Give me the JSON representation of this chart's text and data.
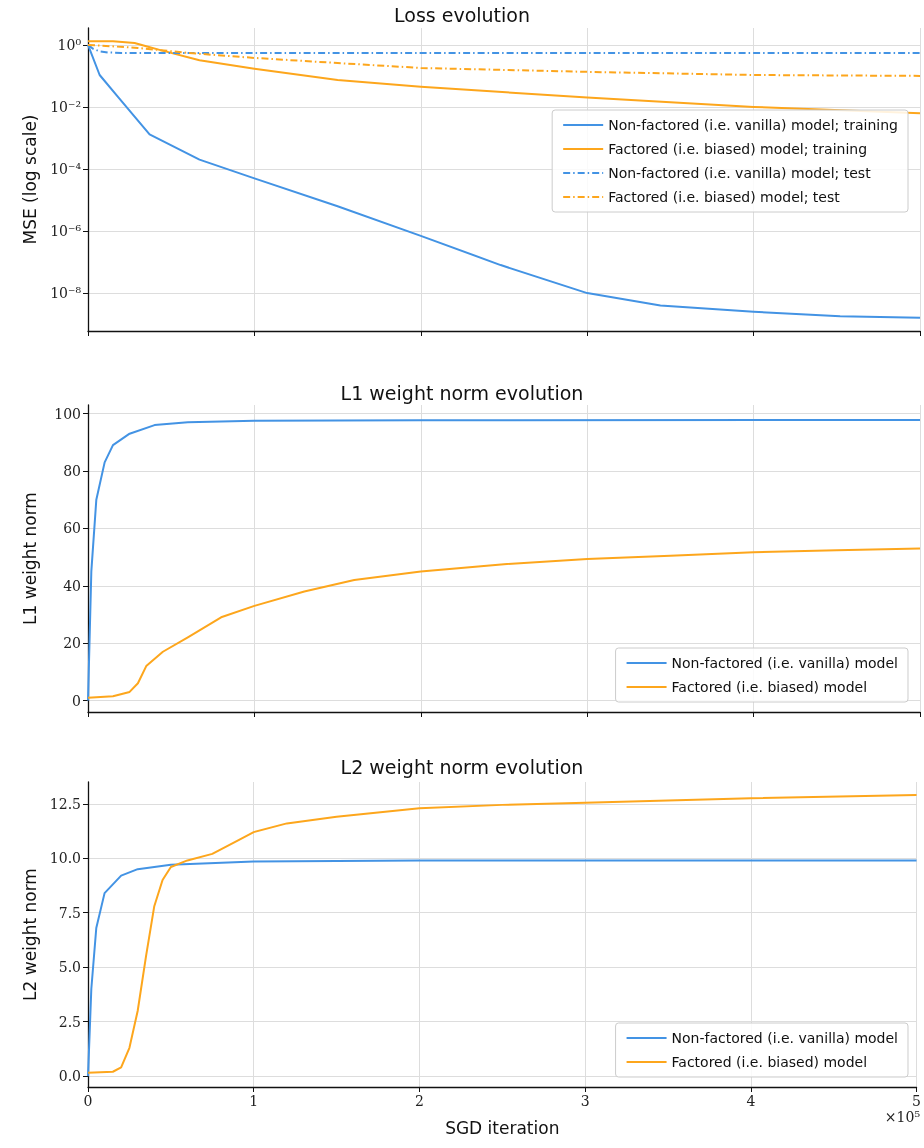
{
  "chart_data": [
    {
      "type": "line",
      "title": "Loss evolution",
      "ylabel": "MSE (log scale)",
      "log": "y",
      "grid": true,
      "legend": "right",
      "marker": "none",
      "tick_labels": "y",
      "xlim": [
        0,
        5
      ],
      "xticks": [
        0,
        1,
        2,
        3,
        4,
        5
      ],
      "ylim": [
        6e-10,
        3.5
      ],
      "yticks": [
        {
          "value": 1,
          "label": "10⁰"
        },
        {
          "value": 0.01,
          "label": "10⁻²"
        },
        {
          "value": 0.0001,
          "label": "10⁻⁴"
        },
        {
          "value": 1e-06,
          "label": "10⁻⁶"
        },
        {
          "value": 1e-08,
          "label": "10⁻⁸"
        }
      ],
      "series": [
        {
          "name": "Non-factored (i.e. vanilla) model; training",
          "color": "#4393e4",
          "line_style": "solid",
          "x": [
            0,
            0.07,
            0.18,
            0.37,
            0.67,
            1,
            1.5,
            2,
            2.48,
            3,
            3.44,
            4,
            4.52,
            5
          ],
          "values": [
            1,
            0.107,
            0.021,
            0.0013,
            0.0002,
            5e-05,
            6.3e-06,
            7e-07,
            8e-08,
            1e-08,
            4e-09,
            2.5e-09,
            1.8e-09,
            1.6e-09
          ]
        },
        {
          "name": "Factored (i.e. biased) model; training",
          "color": "#fda61c",
          "line_style": "solid",
          "x": [
            0,
            0.15,
            0.28,
            0.35,
            0.43,
            0.67,
            1,
            1.5,
            2,
            3,
            4,
            5
          ],
          "values": [
            1.3,
            1.3,
            1.15,
            0.9,
            0.69,
            0.32,
            0.17,
            0.074,
            0.045,
            0.02,
            0.01,
            0.0063
          ]
        },
        {
          "name": "Non-factored (i.e. vanilla) model; test",
          "color": "#4393e4",
          "line_style": "dashdot",
          "x": [
            0,
            0.03,
            0.07,
            0.12,
            0.2,
            1,
            3,
            5
          ],
          "values": [
            1,
            0.75,
            0.62,
            0.57,
            0.55,
            0.55,
            0.55,
            0.55
          ]
        },
        {
          "name": "Factored (i.e. biased) model; test",
          "color": "#fda61c",
          "line_style": "dashdot",
          "x": [
            0,
            0.3,
            0.6,
            1,
            1.5,
            2,
            3,
            4,
            5
          ],
          "values": [
            1,
            0.8,
            0.55,
            0.38,
            0.26,
            0.18,
            0.135,
            0.107,
            0.1
          ]
        }
      ]
    },
    {
      "type": "line",
      "title": "L1 weight norm evolution",
      "ylabel": "L1 weight norm",
      "grid": true,
      "legend": "bottom right",
      "marker": "none",
      "tick_labels": "y",
      "xlim": [
        0,
        5
      ],
      "xticks": [
        0,
        1,
        2,
        3,
        4,
        5
      ],
      "ylim": [
        -4,
        103
      ],
      "yticks": [
        0,
        20,
        40,
        60,
        80,
        100
      ],
      "series": [
        {
          "name": "Non-factored (i.e. vanilla) model",
          "color": "#4393e4",
          "line_style": "solid",
          "x": [
            0,
            0.02,
            0.05,
            0.1,
            0.15,
            0.25,
            0.4,
            0.6,
            1,
            2,
            5
          ],
          "values": [
            0,
            45,
            70,
            83,
            89,
            93,
            96,
            97,
            97.5,
            97.7,
            97.8
          ]
        },
        {
          "name": "Factored (i.e. biased) model",
          "color": "#fda61c",
          "line_style": "solid",
          "x": [
            0,
            0.15,
            0.25,
            0.3,
            0.35,
            0.45,
            0.6,
            0.8,
            1,
            1.3,
            1.6,
            2,
            2.5,
            3,
            3.5,
            4,
            4.5,
            5
          ],
          "values": [
            1,
            1.5,
            3,
            6,
            12,
            17,
            22,
            29,
            33,
            38,
            42,
            45,
            47.5,
            49.3,
            50.5,
            51.7,
            52.4,
            53
          ]
        }
      ]
    },
    {
      "type": "line",
      "title": "L2 weight norm evolution",
      "xlabel": "SGD iteration",
      "ylabel": "L2 weight norm",
      "grid": true,
      "legend": "bottom right",
      "marker": "none",
      "annotations": [
        "×10⁵"
      ],
      "xlim": [
        0,
        5
      ],
      "xticks": [
        0,
        1,
        2,
        3,
        4,
        5
      ],
      "ylim": [
        -0.5,
        13.5
      ],
      "yticks": [
        {
          "value": 0,
          "label": "0.0"
        },
        2.5,
        {
          "value": 5,
          "label": "5.0"
        },
        7.5,
        {
          "value": 10,
          "label": "10.0"
        },
        12.5
      ],
      "series": [
        {
          "name": "Non-factored (i.e. vanilla) model",
          "color": "#4393e4",
          "line_style": "solid",
          "x": [
            0,
            0.02,
            0.05,
            0.1,
            0.2,
            0.3,
            0.5,
            1,
            2,
            5
          ],
          "values": [
            0,
            4,
            6.8,
            8.4,
            9.2,
            9.5,
            9.7,
            9.85,
            9.9,
            9.9
          ]
        },
        {
          "name": "Factored (i.e. biased) model",
          "color": "#fda61c",
          "line_style": "solid",
          "x": [
            0,
            0.15,
            0.2,
            0.25,
            0.3,
            0.35,
            0.4,
            0.45,
            0.5,
            0.6,
            0.75,
            0.9,
            1,
            1.2,
            1.5,
            2,
            2.5,
            3,
            4,
            5
          ],
          "values": [
            0.15,
            0.2,
            0.4,
            1.3,
            3,
            5.5,
            7.8,
            9,
            9.6,
            9.9,
            10.2,
            10.8,
            11.2,
            11.6,
            11.9,
            12.3,
            12.45,
            12.55,
            12.75,
            12.9
          ]
        }
      ]
    }
  ]
}
